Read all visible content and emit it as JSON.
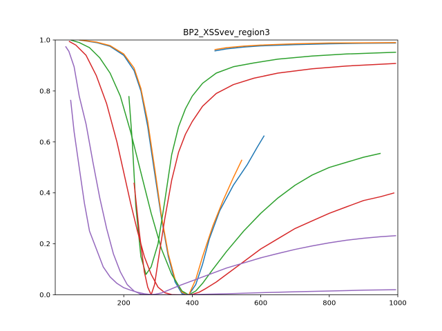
{
  "chart_data": {
    "type": "line",
    "title": "BP2_XSSvev_region3",
    "xlabel": "",
    "ylabel": "",
    "xlim": [
      0,
      1000
    ],
    "ylim": [
      0,
      1
    ],
    "xticks": [
      200,
      400,
      600,
      800,
      1000
    ],
    "yticks": [
      0.0,
      0.2,
      0.4,
      0.6,
      0.8,
      1.0
    ],
    "xtick_labels": [
      "200",
      "400",
      "600",
      "800",
      "1000"
    ],
    "ytick_labels": [
      "0.0",
      "0.2",
      "0.4",
      "0.6",
      "0.8",
      "1.0"
    ],
    "grid": false,
    "series": [
      {
        "color": "#1f77b4",
        "points": [
          [
            70,
            1.0
          ],
          [
            120,
            0.99
          ],
          [
            160,
            0.975
          ],
          [
            200,
            0.94
          ],
          [
            230,
            0.88
          ],
          [
            250,
            0.8
          ],
          [
            270,
            0.66
          ],
          [
            290,
            0.48
          ],
          [
            310,
            0.3
          ],
          [
            330,
            0.15
          ],
          [
            350,
            0.05
          ],
          [
            370,
            0.005
          ],
          [
            390,
            0.0
          ],
          [
            410,
            0.04
          ],
          [
            430,
            0.12
          ],
          [
            450,
            0.22
          ],
          [
            480,
            0.33
          ],
          [
            520,
            0.43
          ],
          [
            560,
            0.51
          ],
          [
            590,
            0.58
          ],
          [
            610,
            0.625
          ]
        ]
      },
      {
        "color": "#1f77b4",
        "points": [
          [
            465,
            0.957
          ],
          [
            500,
            0.965
          ],
          [
            550,
            0.972
          ],
          [
            600,
            0.977
          ],
          [
            700,
            0.982
          ],
          [
            800,
            0.985
          ],
          [
            900,
            0.987
          ],
          [
            995,
            0.988
          ]
        ]
      },
      {
        "color": "#ff7f0e",
        "points": [
          [
            70,
            1.0
          ],
          [
            120,
            0.992
          ],
          [
            160,
            0.978
          ],
          [
            200,
            0.945
          ],
          [
            230,
            0.89
          ],
          [
            250,
            0.81
          ],
          [
            270,
            0.68
          ],
          [
            290,
            0.5
          ],
          [
            310,
            0.31
          ],
          [
            330,
            0.16
          ],
          [
            350,
            0.06
          ],
          [
            370,
            0.01
          ],
          [
            390,
            0.0
          ],
          [
            410,
            0.06
          ],
          [
            430,
            0.15
          ],
          [
            460,
            0.27
          ],
          [
            490,
            0.37
          ],
          [
            520,
            0.46
          ],
          [
            545,
            0.53
          ]
        ]
      },
      {
        "color": "#ff7f0e",
        "points": [
          [
            465,
            0.962
          ],
          [
            500,
            0.97
          ],
          [
            550,
            0.976
          ],
          [
            600,
            0.98
          ],
          [
            700,
            0.985
          ],
          [
            800,
            0.988
          ],
          [
            900,
            0.989
          ],
          [
            995,
            0.99
          ]
        ]
      },
      {
        "color": "#2ca02c",
        "points": [
          [
            45,
            1.0
          ],
          [
            70,
            0.99
          ],
          [
            100,
            0.97
          ],
          [
            130,
            0.93
          ],
          [
            160,
            0.87
          ],
          [
            190,
            0.78
          ],
          [
            220,
            0.64
          ],
          [
            250,
            0.48
          ],
          [
            280,
            0.32
          ],
          [
            310,
            0.18
          ],
          [
            340,
            0.08
          ],
          [
            370,
            0.015
          ],
          [
            390,
            0.0
          ],
          [
            410,
            0.015
          ],
          [
            430,
            0.045
          ],
          [
            460,
            0.1
          ],
          [
            500,
            0.17
          ],
          [
            550,
            0.25
          ],
          [
            600,
            0.32
          ],
          [
            650,
            0.38
          ],
          [
            700,
            0.43
          ],
          [
            750,
            0.47
          ],
          [
            800,
            0.5
          ],
          [
            850,
            0.52
          ],
          [
            900,
            0.54
          ],
          [
            950,
            0.555
          ]
        ]
      },
      {
        "color": "#2ca02c",
        "points": [
          [
            215,
            0.78
          ],
          [
            225,
            0.6
          ],
          [
            235,
            0.35
          ],
          [
            250,
            0.15
          ],
          [
            265,
            0.08
          ],
          [
            280,
            0.11
          ],
          [
            300,
            0.2
          ],
          [
            320,
            0.37
          ],
          [
            340,
            0.55
          ],
          [
            360,
            0.66
          ],
          [
            380,
            0.73
          ],
          [
            400,
            0.78
          ],
          [
            430,
            0.83
          ],
          [
            470,
            0.87
          ],
          [
            520,
            0.895
          ],
          [
            580,
            0.91
          ],
          [
            650,
            0.925
          ],
          [
            750,
            0.937
          ],
          [
            850,
            0.945
          ],
          [
            995,
            0.952
          ]
        ]
      },
      {
        "color": "#d62728",
        "points": [
          [
            40,
            0.995
          ],
          [
            60,
            0.98
          ],
          [
            90,
            0.94
          ],
          [
            120,
            0.86
          ],
          [
            150,
            0.75
          ],
          [
            180,
            0.6
          ],
          [
            200,
            0.48
          ],
          [
            220,
            0.36
          ],
          [
            240,
            0.25
          ],
          [
            260,
            0.15
          ],
          [
            280,
            0.08
          ],
          [
            300,
            0.03
          ],
          [
            320,
            0.008
          ],
          [
            340,
            0.001
          ],
          [
            360,
            0.0
          ],
          [
            380,
            0.0
          ],
          [
            400,
            0.002
          ],
          [
            420,
            0.01
          ],
          [
            440,
            0.025
          ],
          [
            470,
            0.05
          ],
          [
            500,
            0.08
          ],
          [
            550,
            0.13
          ],
          [
            600,
            0.18
          ],
          [
            650,
            0.22
          ],
          [
            700,
            0.26
          ],
          [
            750,
            0.29
          ],
          [
            800,
            0.32
          ],
          [
            850,
            0.345
          ],
          [
            900,
            0.37
          ],
          [
            950,
            0.385
          ],
          [
            990,
            0.4
          ]
        ]
      },
      {
        "color": "#d62728",
        "points": [
          [
            230,
            0.44
          ],
          [
            245,
            0.25
          ],
          [
            260,
            0.09
          ],
          [
            270,
            0.03
          ],
          [
            280,
            0.0
          ],
          [
            290,
            0.04
          ],
          [
            300,
            0.13
          ],
          [
            320,
            0.3
          ],
          [
            340,
            0.45
          ],
          [
            360,
            0.56
          ],
          [
            380,
            0.63
          ],
          [
            400,
            0.68
          ],
          [
            430,
            0.74
          ],
          [
            470,
            0.79
          ],
          [
            520,
            0.825
          ],
          [
            580,
            0.85
          ],
          [
            650,
            0.87
          ],
          [
            750,
            0.887
          ],
          [
            850,
            0.898
          ],
          [
            995,
            0.908
          ]
        ]
      },
      {
        "color": "#9467bd",
        "points": [
          [
            30,
            0.975
          ],
          [
            40,
            0.955
          ],
          [
            55,
            0.895
          ],
          [
            70,
            0.78
          ],
          [
            90,
            0.67
          ],
          [
            110,
            0.52
          ],
          [
            130,
            0.38
          ],
          [
            150,
            0.26
          ],
          [
            170,
            0.16
          ],
          [
            190,
            0.09
          ],
          [
            210,
            0.04
          ],
          [
            230,
            0.015
          ],
          [
            250,
            0.002
          ],
          [
            270,
            0.0
          ],
          [
            290,
            0.002
          ],
          [
            310,
            0.007
          ],
          [
            330,
            0.018
          ],
          [
            360,
            0.035
          ],
          [
            400,
            0.055
          ],
          [
            450,
            0.08
          ],
          [
            500,
            0.105
          ],
          [
            550,
            0.125
          ],
          [
            600,
            0.145
          ],
          [
            650,
            0.162
          ],
          [
            700,
            0.178
          ],
          [
            750,
            0.192
          ],
          [
            800,
            0.204
          ],
          [
            850,
            0.214
          ],
          [
            900,
            0.222
          ],
          [
            950,
            0.228
          ],
          [
            995,
            0.232
          ]
        ]
      },
      {
        "color": "#9467bd",
        "points": [
          [
            45,
            0.765
          ],
          [
            55,
            0.64
          ],
          [
            70,
            0.5
          ],
          [
            85,
            0.36
          ],
          [
            100,
            0.25
          ],
          [
            120,
            0.18
          ],
          [
            140,
            0.11
          ],
          [
            160,
            0.07
          ],
          [
            180,
            0.045
          ],
          [
            200,
            0.028
          ],
          [
            220,
            0.018
          ],
          [
            240,
            0.01
          ],
          [
            260,
            0.004
          ],
          [
            280,
            0.001
          ],
          [
            300,
            0.0
          ],
          [
            350,
            0.0
          ],
          [
            400,
            0.001
          ],
          [
            500,
            0.004
          ],
          [
            600,
            0.008
          ],
          [
            700,
            0.012
          ],
          [
            800,
            0.015
          ],
          [
            900,
            0.018
          ],
          [
            995,
            0.02
          ]
        ]
      }
    ]
  }
}
